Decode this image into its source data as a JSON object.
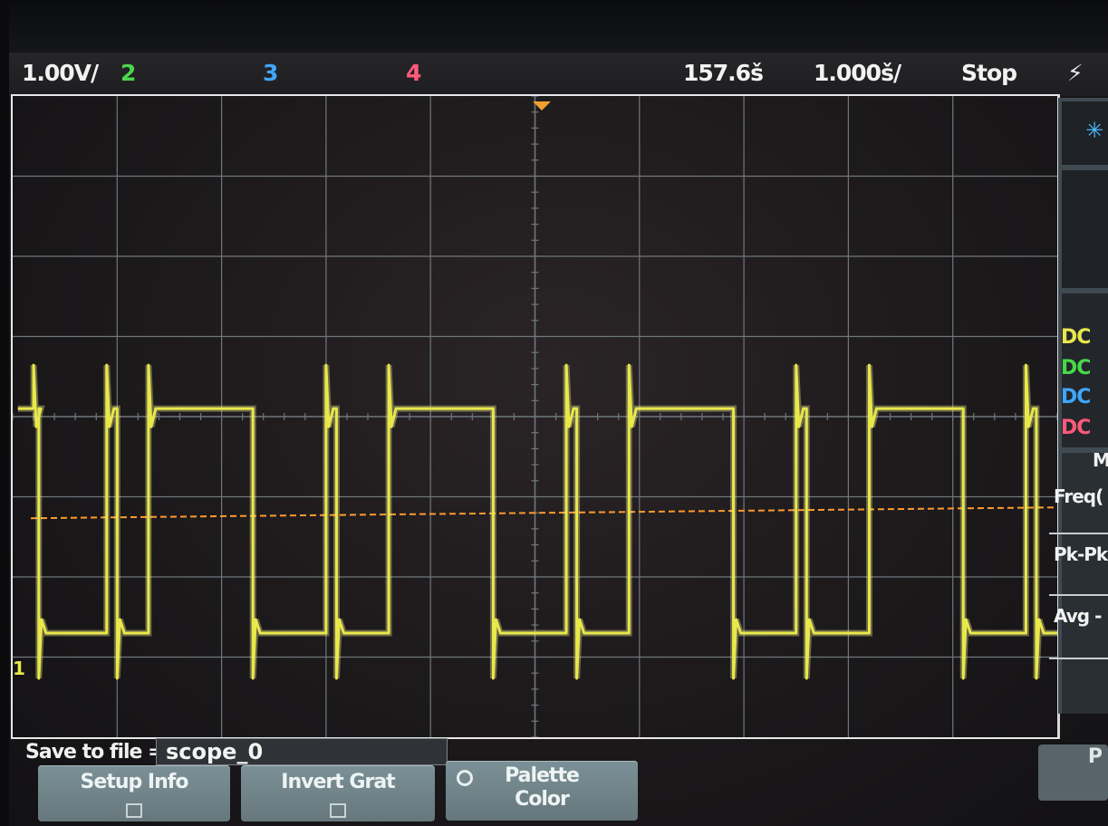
{
  "status_bar": {
    "ch1_scale": "1.00V/",
    "ch2": "2",
    "ch3": "3",
    "ch4": "4",
    "time_offset": "157.6š",
    "time_scale": "1.000š/",
    "run_state": "Stop",
    "trigger_symbol": "⚡"
  },
  "colors": {
    "ch1": "#e8e84a",
    "ch2": "#49d84a",
    "ch3": "#3fa6ff",
    "ch4": "#ff5a7a",
    "trigger_level": "#ff9a2e",
    "grid": "#6f777c"
  },
  "side_panel": {
    "couplings": [
      {
        "label": "DC",
        "channel": "ch1"
      },
      {
        "label": "DC",
        "channel": "ch2"
      },
      {
        "label": "DC",
        "channel": "ch3"
      },
      {
        "label": "DC",
        "channel": "ch4"
      }
    ],
    "measure_header": "M",
    "measurements": [
      "Freq(",
      "Pk-Pk",
      "Avg - "
    ]
  },
  "channel_marker": "1",
  "bottom": {
    "save_label": "Save to file =",
    "save_value": "scope_0",
    "softkeys": [
      {
        "label": "Setup Info",
        "checkbox": true
      },
      {
        "label": "Invert Grat",
        "checkbox": true
      },
      {
        "label": "Palette\nColor",
        "checkbox": false
      }
    ],
    "right_key": "P"
  },
  "waveform": {
    "channel": "ch1",
    "shape": "square-pulse-train",
    "high_level_div": 0.1,
    "low_level_div": -2.7,
    "trigger_level_div": -1.2,
    "segments": [
      [
        0.2,
        "H"
      ],
      [
        0.25,
        "L"
      ],
      [
        0.9,
        "H"
      ],
      [
        1.0,
        "L"
      ],
      [
        1.3,
        "H"
      ],
      [
        2.3,
        "L"
      ],
      [
        3.0,
        "H"
      ],
      [
        3.1,
        "L"
      ],
      [
        3.6,
        "H"
      ],
      [
        4.6,
        "L"
      ],
      [
        5.3,
        "H"
      ],
      [
        5.4,
        "L"
      ],
      [
        5.9,
        "H"
      ],
      [
        6.9,
        "L"
      ],
      [
        7.5,
        "H"
      ],
      [
        7.6,
        "L"
      ],
      [
        8.2,
        "H"
      ],
      [
        9.1,
        "L"
      ],
      [
        9.7,
        "H"
      ],
      [
        9.8,
        "L"
      ],
      [
        10.4,
        "H"
      ]
    ]
  }
}
